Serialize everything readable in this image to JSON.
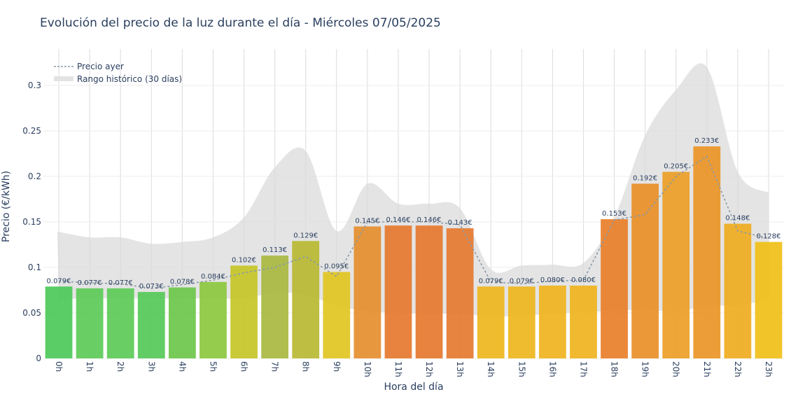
{
  "chart_data": {
    "type": "bar",
    "title": "Evolución del precio de la luz durante el día - Miércoles 07/05/2025",
    "xlabel": "Hora del día",
    "ylabel": "Precio (€/kWh)",
    "ylim": [
      0,
      0.34
    ],
    "yticks": [
      "0",
      "0.05",
      "0.1",
      "0.15",
      "0.2",
      "0.25",
      "0.3"
    ],
    "ytick_values": [
      0,
      0.05,
      0.1,
      0.15,
      0.2,
      0.25,
      0.3
    ],
    "grid": true,
    "legend_position": "top-left",
    "categories": [
      "0h",
      "1h",
      "2h",
      "3h",
      "4h",
      "5h",
      "6h",
      "7h",
      "8h",
      "9h",
      "10h",
      "11h",
      "12h",
      "13h",
      "14h",
      "15h",
      "16h",
      "17h",
      "18h",
      "19h",
      "20h",
      "21h",
      "22h",
      "23h"
    ],
    "series": [
      {
        "type": "bar",
        "values": [
          0.079,
          0.077,
          0.077,
          0.073,
          0.078,
          0.084,
          0.102,
          0.113,
          0.129,
          0.095,
          0.145,
          0.146,
          0.146,
          0.143,
          0.079,
          0.079,
          0.08,
          0.08,
          0.153,
          0.192,
          0.205,
          0.233,
          0.148,
          0.128
        ],
        "labels": [
          "0.079€",
          "0.077€",
          "0.077€",
          "0.073€",
          "0.078€",
          "0.084€",
          "0.102€",
          "0.113€",
          "0.129€",
          "0.095€",
          "0.145€",
          "0.146€",
          "0.146€",
          "0.143€",
          "0.079€",
          "0.079€",
          "0.080€",
          "0.080€",
          "0.153€",
          "0.192€",
          "0.205€",
          "0.233€",
          "0.148€",
          "0.128€"
        ],
        "colors": [
          "#4cc95a",
          "#5ccb58",
          "#5ccb58",
          "#56c958",
          "#6cc74a",
          "#8cc83e",
          "#c5c528",
          "#a8b840",
          "#b8b832",
          "#e2c521",
          "#e58e2e",
          "#e5782e",
          "#e5782e",
          "#e57a30",
          "#eeb61d",
          "#eeb61d",
          "#efb31d",
          "#efb31d",
          "#e97f2a",
          "#e98f28",
          "#eb9e26",
          "#eb9526",
          "#efad1f",
          "#f0c018"
        ]
      },
      {
        "name": "Precio ayer",
        "type": "line",
        "style": "dotted",
        "color": "#8a9aa8",
        "values": [
          0.085,
          0.083,
          0.082,
          0.077,
          0.081,
          0.086,
          0.094,
          0.1,
          0.112,
          0.09,
          0.15,
          0.15,
          0.15,
          0.147,
          0.084,
          0.082,
          0.085,
          0.086,
          0.152,
          0.158,
          0.2,
          0.222,
          0.14,
          0.132
        ]
      },
      {
        "name": "Rango histórico (30 días)",
        "type": "area",
        "color": "#d9d9d9",
        "upper": [
          0.139,
          0.133,
          0.133,
          0.126,
          0.128,
          0.133,
          0.155,
          0.21,
          0.228,
          0.14,
          0.192,
          0.17,
          0.17,
          0.165,
          0.098,
          0.102,
          0.103,
          0.105,
          0.155,
          0.245,
          0.295,
          0.32,
          0.205,
          0.182
        ],
        "lower": [
          0.065,
          0.066,
          0.066,
          0.066,
          0.066,
          0.066,
          0.066,
          0.072,
          0.07,
          0.058,
          0.052,
          0.05,
          0.049,
          0.049,
          0.046,
          0.047,
          0.049,
          0.051,
          0.052,
          0.054,
          0.051,
          0.058,
          0.058,
          0.065
        ]
      }
    ]
  }
}
